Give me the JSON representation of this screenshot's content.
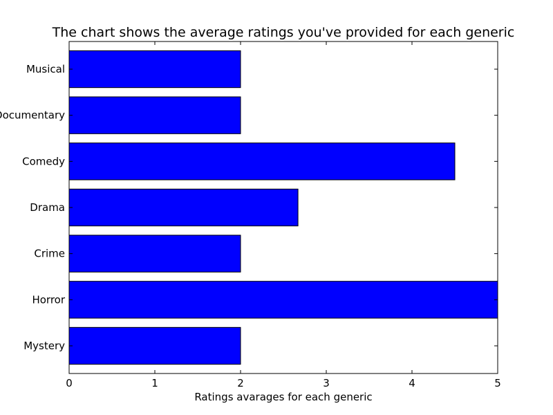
{
  "chart_data": {
    "type": "bar",
    "orientation": "horizontal",
    "title": "The chart shows the average ratings you've provided for each generic",
    "xlabel": "Ratings avarages for each generic",
    "ylabel": "",
    "categories": [
      "Mystery",
      "Horror",
      "Crime",
      "Drama",
      "Comedy",
      "Documentary",
      "Musical"
    ],
    "values": [
      2,
      5,
      2,
      2.67,
      4.5,
      2,
      2
    ],
    "xlim": [
      0,
      5
    ],
    "xticks": [
      "0",
      "1",
      "2",
      "3",
      "4",
      "5"
    ],
    "bar_color": "#0000ff",
    "edge_color": "#000000",
    "grid": false
  }
}
